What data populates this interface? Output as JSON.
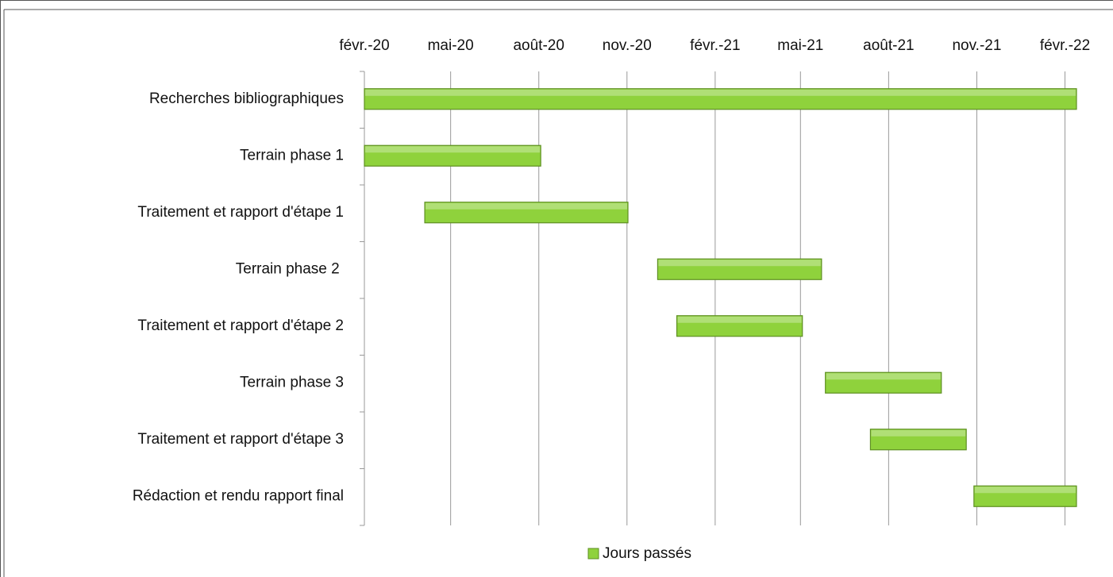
{
  "chart_data": {
    "type": "gantt",
    "categories": [
      "Recherches bibliographiques",
      "Terrain phase 1",
      "Traitement et rapport d'étape 1",
      "Terrain phase 2 ",
      "Traitement et rapport d'étape 2",
      "Terrain phase 3",
      "Traitement et rapport d'étape 3",
      "Rédaction et rendu rapport final"
    ],
    "starts": [
      43862,
      43862,
      43925,
      44168,
      44188,
      44343,
      44390,
      44498
    ],
    "series": [
      {
        "name": "Jours passés",
        "color": "#8fd23c",
        "values": [
          743,
          184,
          212,
          171,
          131,
          121,
          100,
          107
        ]
      }
    ],
    "xlim": [
      43862,
      44605
    ],
    "xticks": [
      {
        "value": 43862,
        "label": "févr.-20"
      },
      {
        "value": 43952,
        "label": "mai-20"
      },
      {
        "value": 44044,
        "label": "août-20"
      },
      {
        "value": 44136,
        "label": "nov.-20"
      },
      {
        "value": 44228,
        "label": "févr.-21"
      },
      {
        "value": 44317,
        "label": "mai-21"
      },
      {
        "value": 44409,
        "label": "août-21"
      },
      {
        "value": 44501,
        "label": "nov.-21"
      },
      {
        "value": 44593,
        "label": "févr.-22"
      }
    ],
    "grid": true,
    "legend": "bottom"
  }
}
